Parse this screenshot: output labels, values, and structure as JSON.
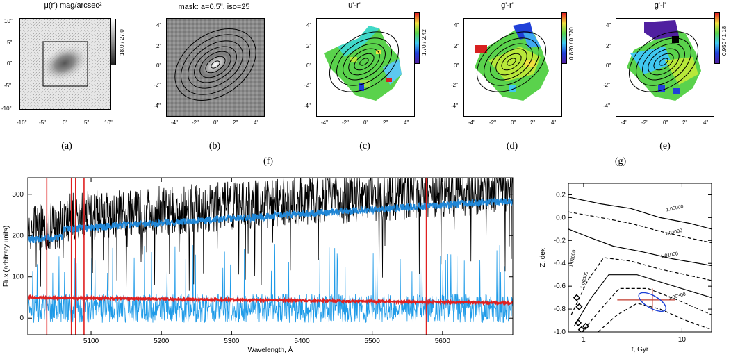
{
  "panels": {
    "a": {
      "title": "μ(r') mag/arcsec²",
      "cbar_label": "18.0 / 27.0",
      "caption": "(a)",
      "xticks": [
        "-10\"",
        "-5\"",
        "0\"",
        "5\"",
        "10\""
      ],
      "yticks": [
        "10\"",
        "5\"",
        "0\"",
        "-5\"",
        "-10\""
      ]
    },
    "b": {
      "title": "mask: a=0.5\", iso=25",
      "caption": "(b)"
    },
    "c": {
      "title": "u'-r'",
      "cbar_label": "1.70 / 2.42",
      "caption": "(c)"
    },
    "d": {
      "title": "g'-r'",
      "cbar_label": "0.820 / 0.770",
      "caption": "(d)"
    },
    "e": {
      "title": "g'-i'",
      "cbar_label": "0.950 / 1.18",
      "caption": "(e)"
    },
    "small_xticks": [
      "-4\"",
      "-2\"",
      "0\"",
      "2\"",
      "4\""
    ],
    "small_yticks": [
      "4\"",
      "2\"",
      "0\"",
      "-2\"",
      "-4\""
    ]
  },
  "group_captions": {
    "f": "(f)",
    "g": "(g)"
  },
  "chart_data": [
    {
      "type": "line",
      "xlabel": "Wavelength, Å",
      "ylabel": "Flux (arbitraty units)",
      "xlim": [
        5010,
        5700
      ],
      "ylim": [
        -40,
        340
      ],
      "xticks": [
        5100,
        5200,
        5300,
        5400,
        5500,
        5600
      ],
      "yticks": [
        0,
        100,
        200,
        300
      ],
      "series": [
        {
          "role": "observed spectrum",
          "color": "#000000",
          "approx_level_start": 210,
          "approx_level_end": 290
        },
        {
          "role": "model fit",
          "color": "#1f86d6",
          "approx_level_start": 210,
          "approx_level_end": 285
        },
        {
          "role": "residuals",
          "color": "#1f9be8",
          "approx_level": 10
        },
        {
          "role": "noise level",
          "color": "#e02020",
          "approx_level_start": 50,
          "approx_level_end": 37
        }
      ],
      "vertical_lines_x": [
        5037,
        5072,
        5078,
        5090,
        5577
      ],
      "vertical_lines_color": "#e02020"
    },
    {
      "type": "line",
      "xlabel": "t, Gyr",
      "ylabel": "Z, dex",
      "xscale": "log",
      "xlim": [
        0.7,
        20
      ],
      "ylim": [
        -1.0,
        0.3
      ],
      "xticks": [
        1,
        10
      ],
      "yticks": [
        -1.0,
        -0.8,
        -0.6,
        -0.4,
        -0.2,
        0.0,
        0.2
      ],
      "contour_labels": [
        "1.05000",
        "1.03000",
        "1.01000",
        "1.01000",
        "1.00300",
        "1.00300"
      ],
      "best_fit": {
        "t": 5.0,
        "Z": -0.72
      },
      "errorbar_color": "#c0392b",
      "ellipse_color": "#1a3fd6"
    }
  ]
}
